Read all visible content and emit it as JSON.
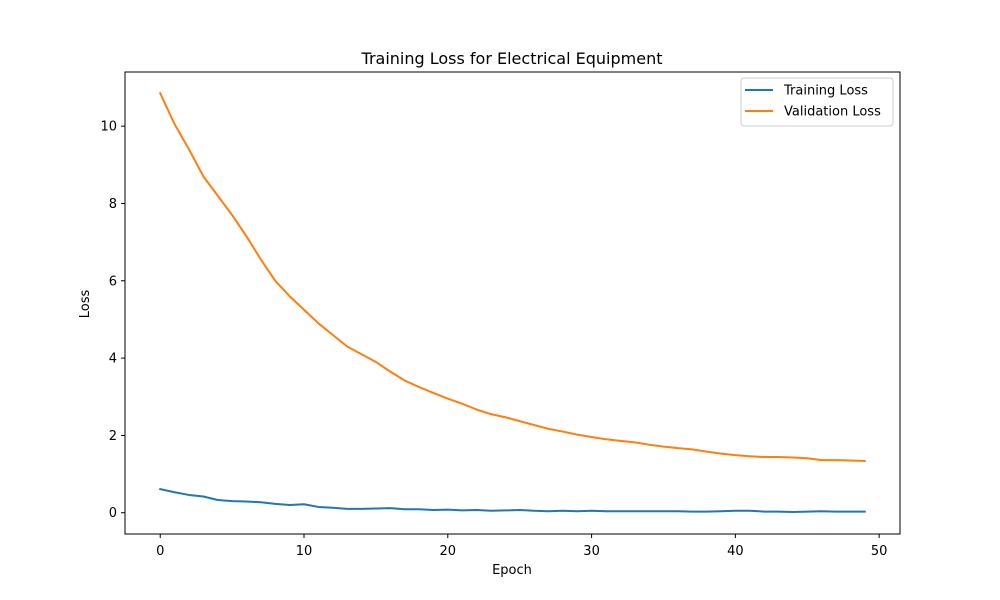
{
  "chart_data": {
    "type": "line",
    "title": "Training Loss for Electrical Equipment",
    "xlabel": "Epoch",
    "ylabel": "Loss",
    "xlim": [
      -2.45,
      51.45
    ],
    "ylim": [
      -0.55,
      11.4
    ],
    "xticks": [
      0,
      10,
      20,
      30,
      40,
      50
    ],
    "yticks": [
      0,
      2,
      4,
      6,
      8,
      10
    ],
    "grid": false,
    "legend_position": "top-right",
    "x": [
      0,
      1,
      2,
      3,
      4,
      5,
      6,
      7,
      8,
      9,
      10,
      11,
      12,
      13,
      14,
      15,
      16,
      17,
      18,
      19,
      20,
      21,
      22,
      23,
      24,
      25,
      26,
      27,
      28,
      29,
      30,
      31,
      32,
      33,
      34,
      35,
      36,
      37,
      38,
      39,
      40,
      41,
      42,
      43,
      44,
      45,
      46,
      47,
      48,
      49
    ],
    "series": [
      {
        "name": "Training Loss",
        "color": "#1f77b4",
        "values": [
          0.61,
          0.53,
          0.46,
          0.42,
          0.33,
          0.3,
          0.29,
          0.27,
          0.23,
          0.2,
          0.22,
          0.15,
          0.13,
          0.1,
          0.1,
          0.11,
          0.12,
          0.09,
          0.09,
          0.07,
          0.08,
          0.06,
          0.07,
          0.05,
          0.06,
          0.07,
          0.05,
          0.04,
          0.05,
          0.04,
          0.05,
          0.04,
          0.04,
          0.04,
          0.04,
          0.04,
          0.04,
          0.03,
          0.03,
          0.04,
          0.05,
          0.05,
          0.03,
          0.03,
          0.02,
          0.03,
          0.04,
          0.03,
          0.03,
          0.03
        ]
      },
      {
        "name": "Validation Loss",
        "color": "#ff7f0e",
        "values": [
          10.85,
          10.05,
          9.4,
          8.7,
          8.2,
          7.7,
          7.15,
          6.55,
          6.0,
          5.6,
          5.25,
          4.9,
          4.6,
          4.3,
          4.1,
          3.9,
          3.65,
          3.42,
          3.25,
          3.1,
          2.95,
          2.82,
          2.67,
          2.55,
          2.47,
          2.37,
          2.27,
          2.17,
          2.1,
          2.02,
          1.96,
          1.9,
          1.86,
          1.82,
          1.76,
          1.71,
          1.67,
          1.64,
          1.58,
          1.53,
          1.49,
          1.46,
          1.44,
          1.44,
          1.43,
          1.41,
          1.36,
          1.36,
          1.35,
          1.34
        ]
      }
    ]
  }
}
